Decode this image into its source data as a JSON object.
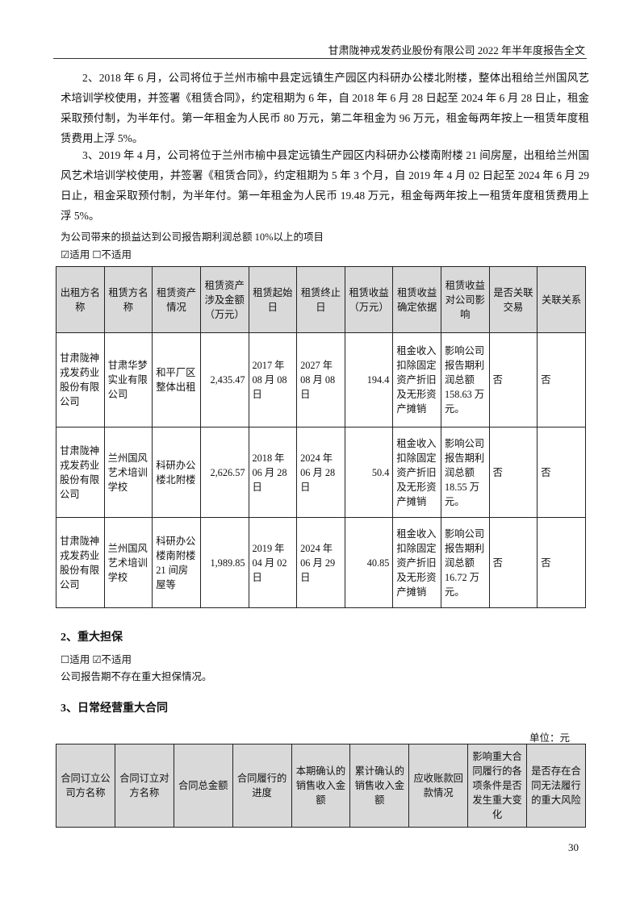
{
  "header": {
    "title": "甘肃陇神戎发药业股份有限公司 2022 年半年度报告全文"
  },
  "paragraphs": [
    "2、2018 年 6 月，公司将位于兰州市榆中县定远镇生产园区内科研办公楼北附楼，整体出租给兰州国风艺术培训学校使用，并签署《租赁合同》，约定租期为 6 年，自 2018 年 6 月 28 日起至 2024 年 6 月 28 日止，租金采取预付制，为半年付。第一年租金为人民币 80 万元，第二年租金为 96 万元，租金每两年按上一租赁年度租赁费用上浮 5%。",
    "3、2019 年 4 月，公司将位于兰州市榆中县定远镇生产园区内科研办公楼南附楼 21 间房屋，出租给兰州国风艺术培训学校使用，并签署《租赁合同》，约定租期为 5 年 3 个月，自 2019 年 4 月 02 日起至 2024 年 6 月 29 日止，租金采取预付制，为半年付。第一年租金为人民币 19.48 万元，租金每两年按上一租赁年度租赁费用上浮 5%。"
  ],
  "lease_note": "为公司带来的损益达到公司报告期利润总额 10%以上的项目",
  "lease_applicable": "☑适用 ☐不适用",
  "lease_table": {
    "headers": [
      "出租方名称",
      "租赁方名称",
      "租赁资产情况",
      "租赁资产涉及金额（万元）",
      "租赁起始日",
      "租赁终止日",
      "租赁收益（万元）",
      "租赁收益确定依据",
      "租赁收益对公司影响",
      "是否关联交易",
      "关联关系"
    ],
    "rows": [
      [
        "甘肃陇神戎发药业股份有限公司",
        "甘肃华梦实业有限公司",
        "和平厂区整体出租",
        "2,435.47",
        "2017 年 08 月 08 日",
        "2027 年 08 月 08 日",
        "194.4",
        "租金收入扣除固定资产折旧及无形资产摊销",
        "影响公司报告期利润总额 158.63 万元。",
        "否",
        "否"
      ],
      [
        "甘肃陇神戎发药业股份有限公司",
        "兰州国风艺术培训学校",
        "科研办公楼北附楼",
        "2,626.57",
        "2018 年 06 月 28 日",
        "2024 年 06 月 28 日",
        "50.4",
        "租金收入扣除固定资产折旧及无形资产摊销",
        "影响公司报告期利润总额 18.55 万元。",
        "否",
        "否"
      ],
      [
        "甘肃陇神戎发药业股份有限公司",
        "兰州国风艺术培训学校",
        "科研办公楼南附楼 21 间房屋等",
        "1,989.85",
        "2019 年 04 月 02 日",
        "2024 年 06 月 29 日",
        "40.85",
        "租金收入扣除固定资产折旧及无形资产摊销",
        "影响公司报告期利润总额 16.72 万元。",
        "否",
        "否"
      ]
    ]
  },
  "guarantee": {
    "title": "2、重大担保",
    "applicable": "☐适用 ☑不适用",
    "text": "公司报告期不存在重大担保情况。"
  },
  "contracts": {
    "title": "3、日常经营重大合同",
    "unit": "单位：元",
    "headers": [
      "合同订立公司方名称",
      "合同订立对方名称",
      "合同总金额",
      "合同履行的进度",
      "本期确认的销售收入金额",
      "累计确认的销售收入金额",
      "应收账款回款情况",
      "影响重大合同履行的各项条件是否发生重大变化",
      "是否存在合同无法履行的重大风险"
    ]
  },
  "page_number": "30"
}
